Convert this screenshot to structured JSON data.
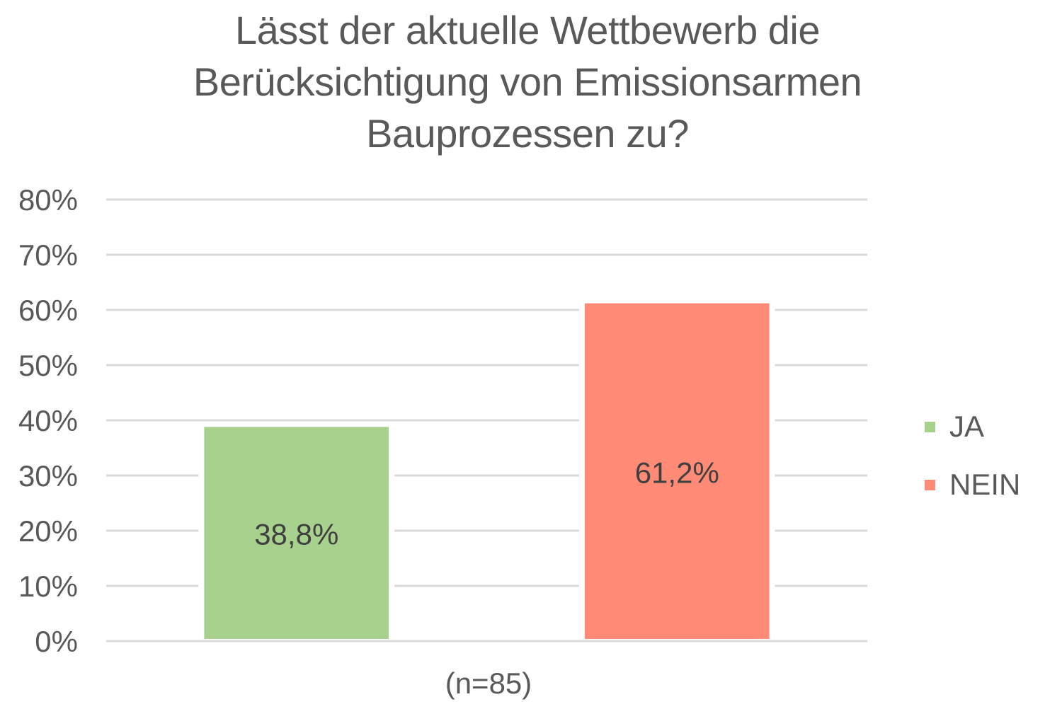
{
  "chart_data": {
    "type": "bar",
    "title_lines": [
      "Lässt der aktuelle Wettbewerb die",
      "Berücksichtigung von  Emissionsarmen",
      "Bauprozessen zu?"
    ],
    "xlabel": "(n=85)",
    "ylabel": "",
    "ylim": [
      0,
      80
    ],
    "y_ticks": [
      "0%",
      "10%",
      "20%",
      "30%",
      "40%",
      "50%",
      "60%",
      "70%",
      "80%"
    ],
    "series": [
      {
        "name": "JA",
        "value": 38.8,
        "label": "38,8%",
        "color": "#a9d18e"
      },
      {
        "name": "NEIN",
        "value": 61.2,
        "label": "61,2%",
        "color": "#ff8b76"
      }
    ],
    "grid": true,
    "legend_position": "right"
  }
}
